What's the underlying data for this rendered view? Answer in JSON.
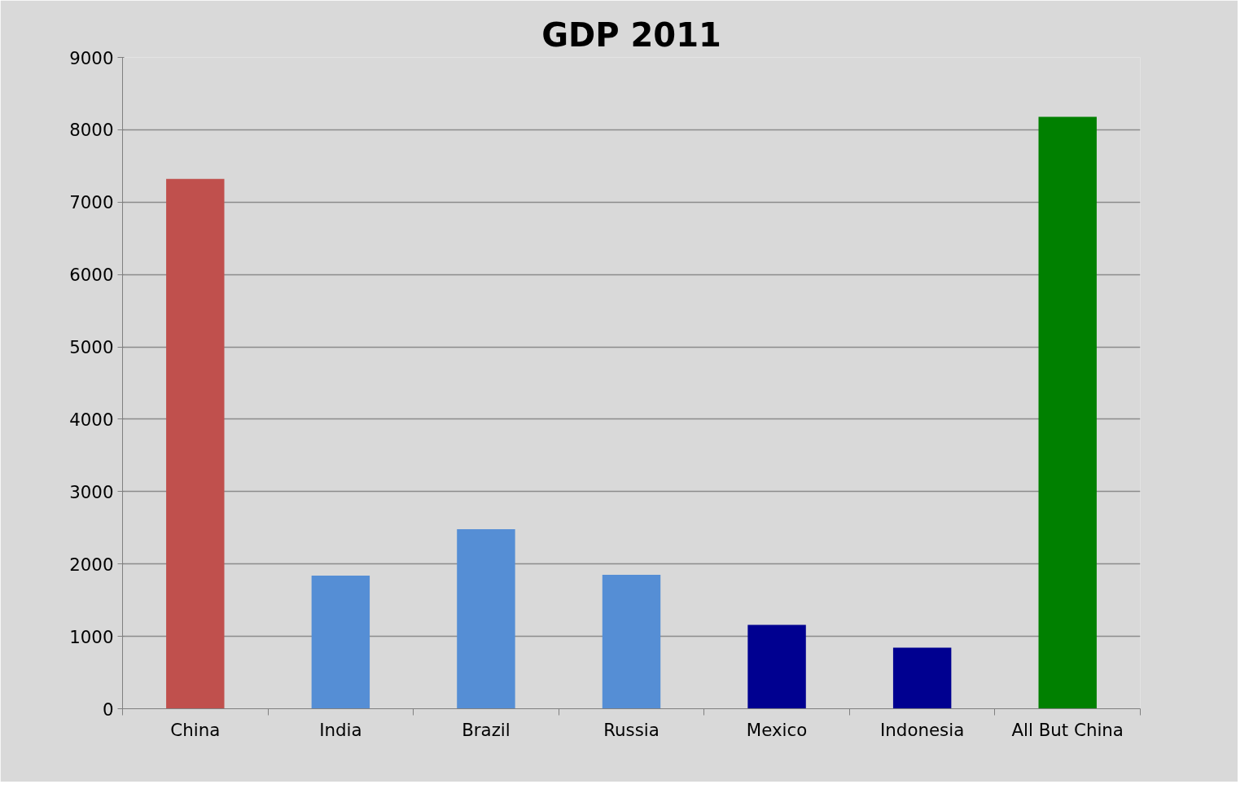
{
  "chart_data": {
    "type": "bar",
    "title": "GDP 2011",
    "categories": [
      "China",
      "India",
      "Brazil",
      "Russia",
      "Mexico",
      "Indonesia",
      "All But China"
    ],
    "values": [
      7320,
      1840,
      2480,
      1850,
      1160,
      845,
      8180
    ],
    "colors": [
      "#c0504d",
      "#558ed5",
      "#558ed5",
      "#558ed5",
      "#000090",
      "#000090",
      "#008000"
    ],
    "ylim": [
      0,
      9000
    ],
    "yticks": [
      0,
      1000,
      2000,
      3000,
      4000,
      5000,
      6000,
      7000,
      8000,
      9000
    ],
    "grid": "y"
  }
}
